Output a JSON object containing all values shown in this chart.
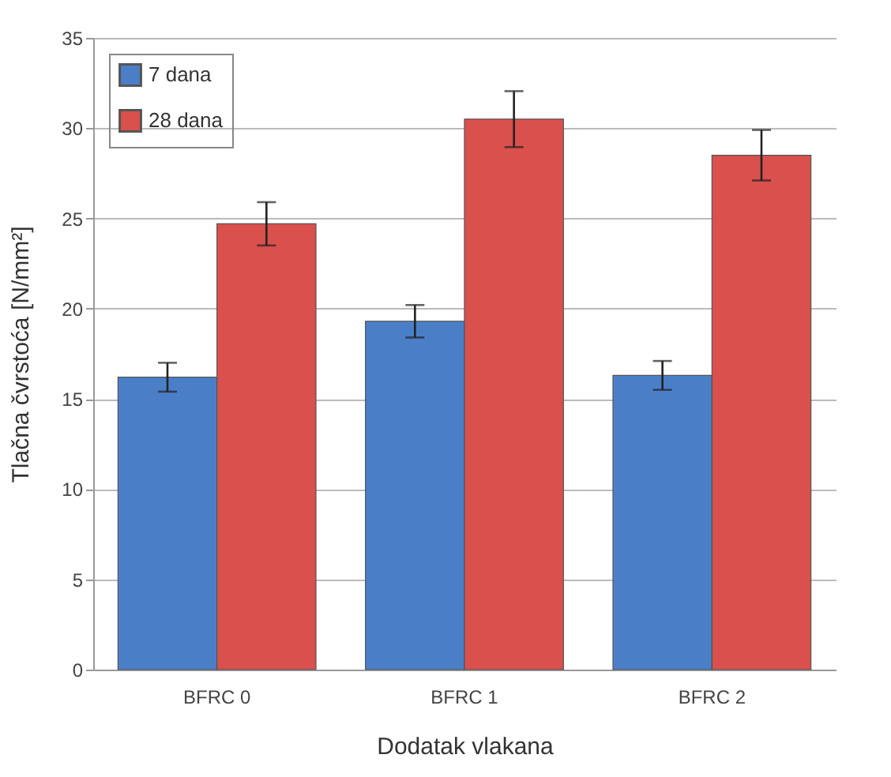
{
  "chart_data": {
    "type": "bar",
    "xlabel": "Dodatak vlakana",
    "ylabel": "Tlačna čvrstoća  [N/mm²]",
    "categories": [
      "BFRC 0",
      "BFRC 1",
      "BFRC 2"
    ],
    "series": [
      {
        "name": "7 dana",
        "color": "#4a7fc8",
        "values": [
          16.2,
          19.3,
          16.3
        ],
        "errors": [
          0.8,
          0.9,
          0.8
        ]
      },
      {
        "name": "28 dana",
        "color": "#d9504c",
        "values": [
          24.7,
          30.5,
          28.5
        ],
        "errors": [
          1.2,
          1.55,
          1.4
        ]
      }
    ],
    "ylim": [
      0,
      35
    ],
    "yticks": [
      0,
      5,
      10,
      15,
      20,
      25,
      30,
      35
    ],
    "grid": "y",
    "legend": "top left"
  }
}
